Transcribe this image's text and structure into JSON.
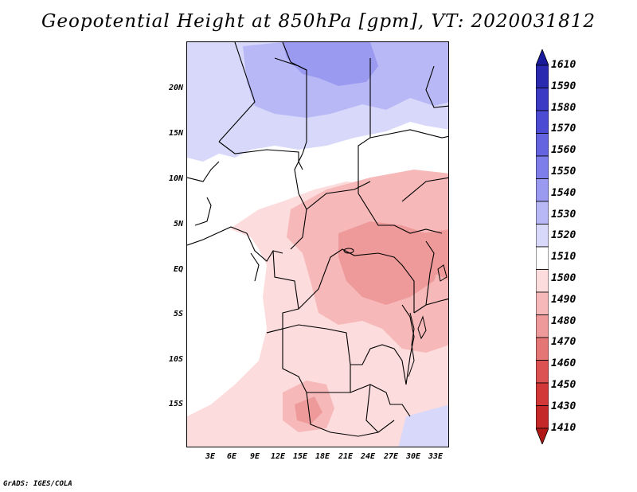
{
  "title": "Geopotential Height at 850hPa [gpm], VT: 2020031812",
  "credit": "GrADS: IGES/COLA",
  "latitude_labels": [
    "20N",
    "15N",
    "10N",
    "5N",
    "EQ",
    "5S",
    "10S",
    "15S"
  ],
  "longitude_labels": [
    "3E",
    "6E",
    "9E",
    "12E",
    "15E",
    "18E",
    "21E",
    "24E",
    "27E",
    "30E",
    "33E"
  ],
  "colorbar": {
    "levels": [
      "1610",
      "1590",
      "1580",
      "1570",
      "1560",
      "1550",
      "1540",
      "1530",
      "1520",
      "1510",
      "1500",
      "1490",
      "1480",
      "1470",
      "1460",
      "1450",
      "1430",
      "1410"
    ],
    "colors": [
      "#1a1a9c",
      "#2a2ab0",
      "#3a3ac4",
      "#4b4bd4",
      "#6464e0",
      "#7e7eea",
      "#9a9af0",
      "#b8b8f6",
      "#d8d8fa",
      "#ffffff",
      "#fcdcdc",
      "#f6b8b8",
      "#ee9a9a",
      "#e47676",
      "#dc5252",
      "#d23838",
      "#c42828",
      "#b01818"
    ]
  },
  "map_colors": {
    "ocean_white": "#ffffff",
    "blue_1520": "#d8d8fa",
    "blue_1530": "#b8b8f6",
    "blue_1540": "#9a9af0",
    "pink_1500": "#fcdcdc",
    "pink_1490": "#f6b8b8",
    "pink_1480": "#ee9a9a",
    "pink_1470": "#e47676",
    "border_color": "#000000"
  }
}
